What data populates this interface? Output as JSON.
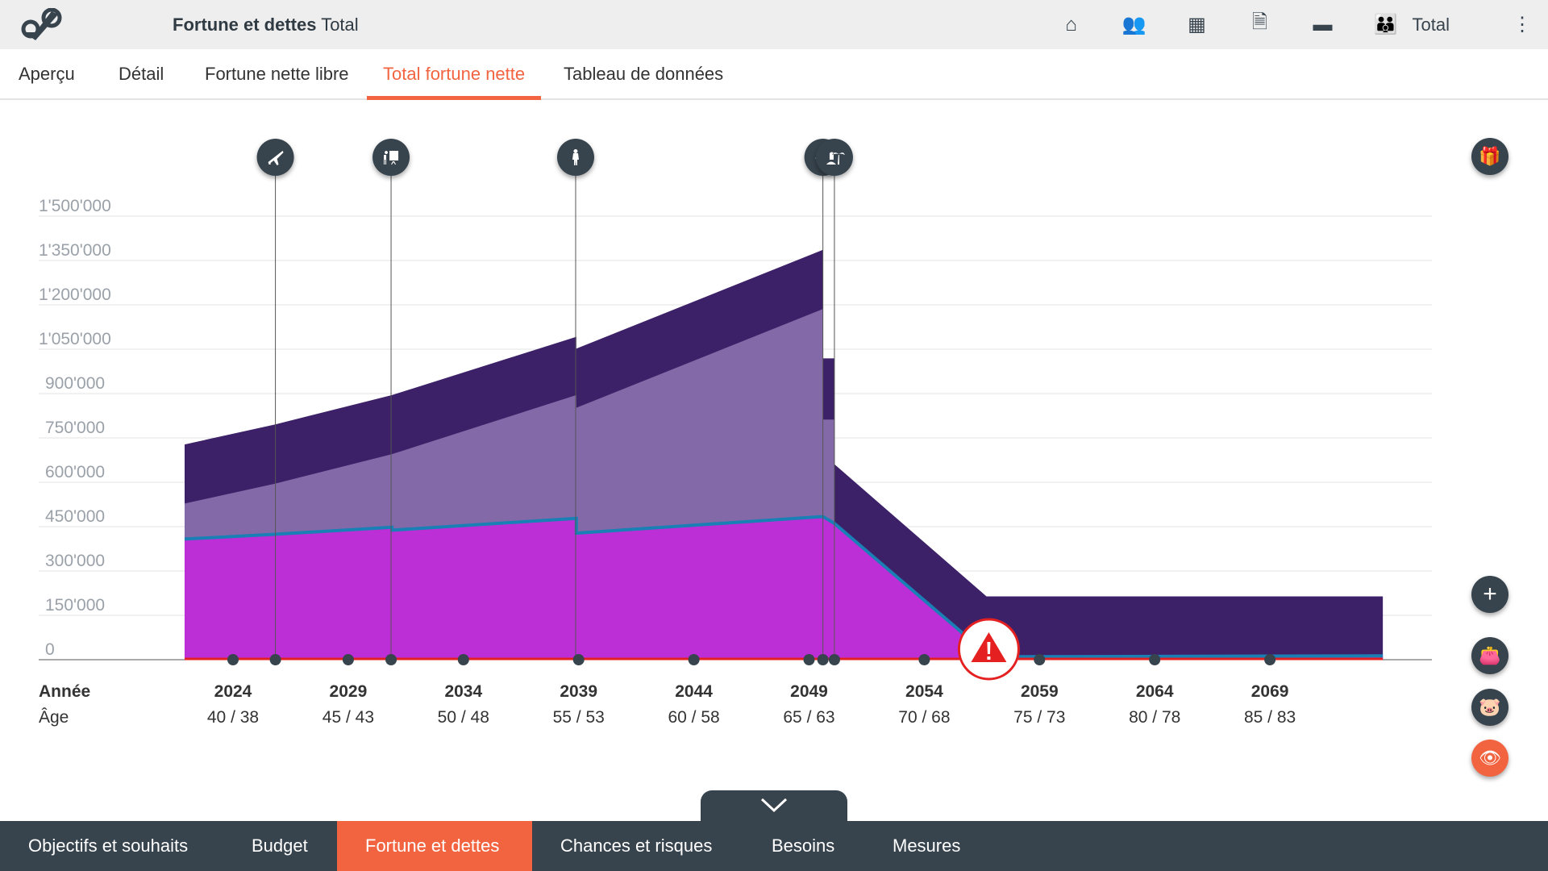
{
  "header": {
    "title_bold": "Fortune et dettes",
    "title_rest": "Total",
    "icons": [
      "home-icon",
      "users-icon",
      "apps-grid-icon",
      "pdf-document-icon",
      "folder-icon",
      "family-icon"
    ],
    "profile_label": "Total"
  },
  "tabs": [
    {
      "label": "Aperçu"
    },
    {
      "label": "Détail"
    },
    {
      "label": "Fortune nette libre"
    },
    {
      "label": "Total fortune nette",
      "active": true
    },
    {
      "label": "Tableau de données"
    }
  ],
  "bottom_nav": [
    {
      "label": "Objectifs et souhaits"
    },
    {
      "label": "Budget"
    },
    {
      "label": "Fortune et dettes",
      "active": true
    },
    {
      "label": "Chances et risques"
    },
    {
      "label": "Besoins"
    },
    {
      "label": "Mesures"
    }
  ],
  "colors": {
    "accent": "#f26440",
    "dark": "#37434d",
    "layer_top": "#3d2168",
    "layer_mid": "#8469a8",
    "layer_base": "#bd2fd6",
    "line": "#1a7fb5",
    "baseline": "#e52020"
  },
  "chart_data": {
    "type": "area",
    "ylim": [
      0,
      1500000
    ],
    "y_ticks": [
      "0",
      "150'000",
      "300'000",
      "450'000",
      "600'000",
      "750'000",
      "900'000",
      "1'050'000",
      "1'200'000",
      "1'350'000",
      "1'500'000"
    ],
    "xlim": [
      2019.6,
      2076.9
    ],
    "row_labels": {
      "year": "Année",
      "age": "Âge"
    },
    "x_ticks": [
      {
        "year": "2024",
        "age": "40 / 38"
      },
      {
        "year": "2029",
        "age": "45 / 43"
      },
      {
        "year": "2034",
        "age": "50 / 48"
      },
      {
        "year": "2039",
        "age": "55 / 53"
      },
      {
        "year": "2044",
        "age": "60 / 58"
      },
      {
        "year": "2049",
        "age": "65 / 63"
      },
      {
        "year": "2054",
        "age": "70 / 68"
      },
      {
        "year": "2059",
        "age": "75 / 73"
      },
      {
        "year": "2064",
        "age": "80 / 78"
      },
      {
        "year": "2069",
        "age": "85 / 83"
      }
    ],
    "series": [
      {
        "name": "total",
        "points": [
          [
            2021.9,
            728000
          ],
          [
            2025.8,
            795000
          ],
          [
            2030.9,
            895000
          ],
          [
            2038.9,
            1092000
          ],
          [
            2038.9,
            1052000
          ],
          [
            2049.6,
            1386000
          ],
          [
            2049.6,
            1019000
          ],
          [
            2050.1,
            1019000
          ],
          [
            2050.1,
            661000
          ],
          [
            2056.7,
            214000
          ],
          [
            2073.9,
            214000
          ]
        ]
      },
      {
        "name": "middle",
        "points": [
          [
            2021.9,
            528000
          ],
          [
            2025.8,
            595000
          ],
          [
            2030.9,
            695000
          ],
          [
            2038.9,
            895000
          ],
          [
            2038.9,
            852000
          ],
          [
            2049.6,
            1186000
          ],
          [
            2049.6,
            812000
          ],
          [
            2050.1,
            812000
          ],
          [
            2050.1,
            461000
          ]
        ]
      },
      {
        "name": "base",
        "points": [
          [
            2021.9,
            408000
          ],
          [
            2025.8,
            424000
          ],
          [
            2030.9,
            448000
          ],
          [
            2030.9,
            438000
          ],
          [
            2038.9,
            478000
          ],
          [
            2038.9,
            428000
          ],
          [
            2049.6,
            484000
          ],
          [
            2050.1,
            461000
          ],
          [
            2055.6,
            94000
          ],
          [
            2056.7,
            10000
          ],
          [
            2073.9,
            13000
          ]
        ]
      }
    ],
    "events": [
      {
        "year": 2025.84,
        "icon": "airplane-icon"
      },
      {
        "year": 2030.86,
        "icon": "presentation-icon"
      },
      {
        "year": 2038.87,
        "icon": "person-icon"
      },
      {
        "year": 2049.6,
        "icon": "retirement-icon"
      },
      {
        "year": 2050.1,
        "icon": "vacation-island-icon"
      }
    ],
    "axis_dots": [
      2024,
      2025.84,
      2029,
      2030.86,
      2034,
      2039,
      2044,
      2049,
      2049.6,
      2050.1,
      2054,
      2059,
      2064,
      2069
    ],
    "warning_year": 2056.8
  }
}
